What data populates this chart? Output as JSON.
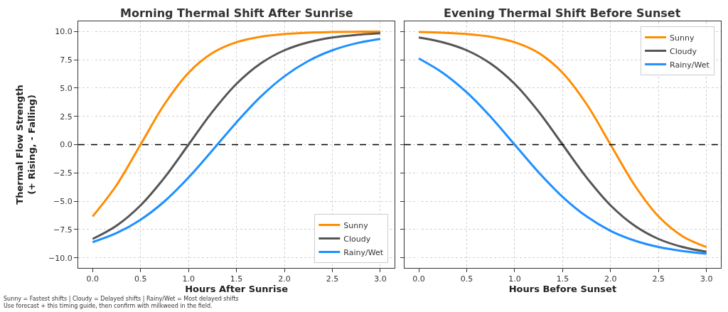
{
  "chart_data": [
    {
      "type": "line",
      "title": "Morning Thermal Shift After Sunrise",
      "xlabel": "Hours After Sunrise",
      "ylabel": "Thermal Flow Strength\n(+ Rising, - Falling)",
      "x": [
        0,
        0.25,
        0.5,
        0.75,
        1,
        1.25,
        1.5,
        1.75,
        2,
        2.25,
        2.5,
        2.75,
        3
      ],
      "series": [
        {
          "name": "Sunny",
          "color": "#ff8c00",
          "values": [
            -6.35,
            -3.58,
            0,
            3.58,
            6.35,
            8.1,
            9.05,
            9.54,
            9.78,
            9.9,
            9.95,
            9.98,
            9.99
          ]
        },
        {
          "name": "Cloudy",
          "color": "#555555",
          "values": [
            -8.34,
            -7.16,
            -5.37,
            -2.91,
            0,
            2.91,
            5.37,
            7.16,
            8.34,
            9.05,
            9.47,
            9.7,
            9.84
          ]
        },
        {
          "name": "Rainy/Wet",
          "color": "#1e90ff",
          "values": [
            -8.62,
            -7.82,
            -6.64,
            -5.01,
            -2.91,
            -0.5,
            1.97,
            4.22,
            6.04,
            7.4,
            8.34,
            8.96,
            9.35
          ]
        }
      ],
      "xlim": [
        -0.15,
        3.15
      ],
      "xticks": [
        {
          "value": 0,
          "label": "0.0"
        },
        0.5,
        {
          "value": 1,
          "label": "1.0"
        },
        1.5,
        {
          "value": 2,
          "label": "2.0"
        },
        2.5,
        {
          "value": 3,
          "label": "3.0"
        }
      ],
      "ylim": [
        -10.9,
        10.9
      ],
      "yticks": [
        {
          "value": -10,
          "label": "−10.0"
        },
        {
          "value": -7.5,
          "label": "−7.5"
        },
        {
          "value": -5,
          "label": "−5.0"
        },
        {
          "value": -2.5,
          "label": "−2.5"
        },
        {
          "value": 0,
          "label": "0.0"
        },
        2.5,
        {
          "value": 5,
          "label": "5.0"
        },
        7.5,
        {
          "value": 10,
          "label": "10.0"
        }
      ],
      "ref_lines": [
        {
          "axis": "y",
          "value": 0,
          "color": "#000000",
          "line_style": "dashed"
        }
      ],
      "grid": true,
      "legend": "bottom right",
      "line_style": "solid",
      "marker": "none",
      "annotations": [
        "Sunny = Fastest shifts | Cloudy = Delayed shifts | Rainy/Wet = Most delayed shifts\nUse forecast + this timing guide, then confirm with milkweed in the field."
      ]
    },
    {
      "type": "line",
      "title": "Evening Thermal Shift Before Sunset",
      "xlabel": "Hours Before Sunset",
      "x": [
        0,
        0.25,
        0.5,
        0.75,
        1,
        1.25,
        1.5,
        1.75,
        2,
        2.25,
        2.5,
        2.75,
        3
      ],
      "series": [
        {
          "name": "Sunny",
          "color": "#ff8c00",
          "values": [
            9.95,
            9.9,
            9.78,
            9.54,
            9.05,
            8.1,
            6.35,
            3.58,
            0,
            -3.58,
            -6.35,
            -8.1,
            -9.05
          ]
        },
        {
          "name": "Cloudy",
          "color": "#555555",
          "values": [
            9.47,
            9.05,
            8.34,
            7.16,
            5.37,
            2.91,
            0,
            -2.91,
            -5.37,
            -7.16,
            -8.34,
            -9.05,
            -9.47
          ]
        },
        {
          "name": "Rainy/Wet",
          "color": "#1e90ff",
          "values": [
            7.62,
            6.35,
            4.62,
            2.45,
            0,
            -2.45,
            -4.62,
            -6.35,
            -7.62,
            -8.48,
            -9.05,
            -9.41,
            -9.64
          ]
        }
      ],
      "xlim": [
        -0.15,
        3.15
      ],
      "xticks": [
        {
          "value": 0,
          "label": "0.0"
        },
        0.5,
        {
          "value": 1,
          "label": "1.0"
        },
        1.5,
        {
          "value": 2,
          "label": "2.0"
        },
        2.5,
        {
          "value": 3,
          "label": "3.0"
        }
      ],
      "ylim": [
        -10.9,
        10.9
      ],
      "yticks": [
        -10,
        -7.5,
        -5,
        -2.5,
        0,
        2.5,
        5,
        7.5,
        10
      ],
      "tick_labels": "x",
      "ref_lines": [
        {
          "axis": "y",
          "value": 0,
          "color": "#000000",
          "line_style": "dashed"
        }
      ],
      "grid": true,
      "legend": "top right",
      "line_style": "solid",
      "marker": "none"
    }
  ]
}
